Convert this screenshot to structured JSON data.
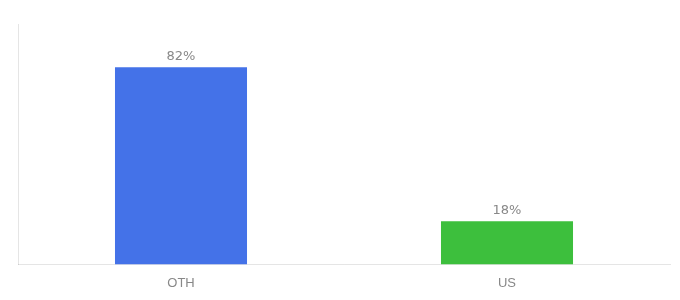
{
  "chart_data": {
    "type": "bar",
    "categories": [
      "OTH",
      "US"
    ],
    "values": [
      82,
      18
    ],
    "value_labels": [
      "82%",
      "18%"
    ],
    "colors": [
      "#4472e8",
      "#3dbf3d"
    ],
    "ylim": [
      0,
      100
    ],
    "data_labels": true,
    "tick_labels": "x",
    "grid": false,
    "legend": false
  }
}
